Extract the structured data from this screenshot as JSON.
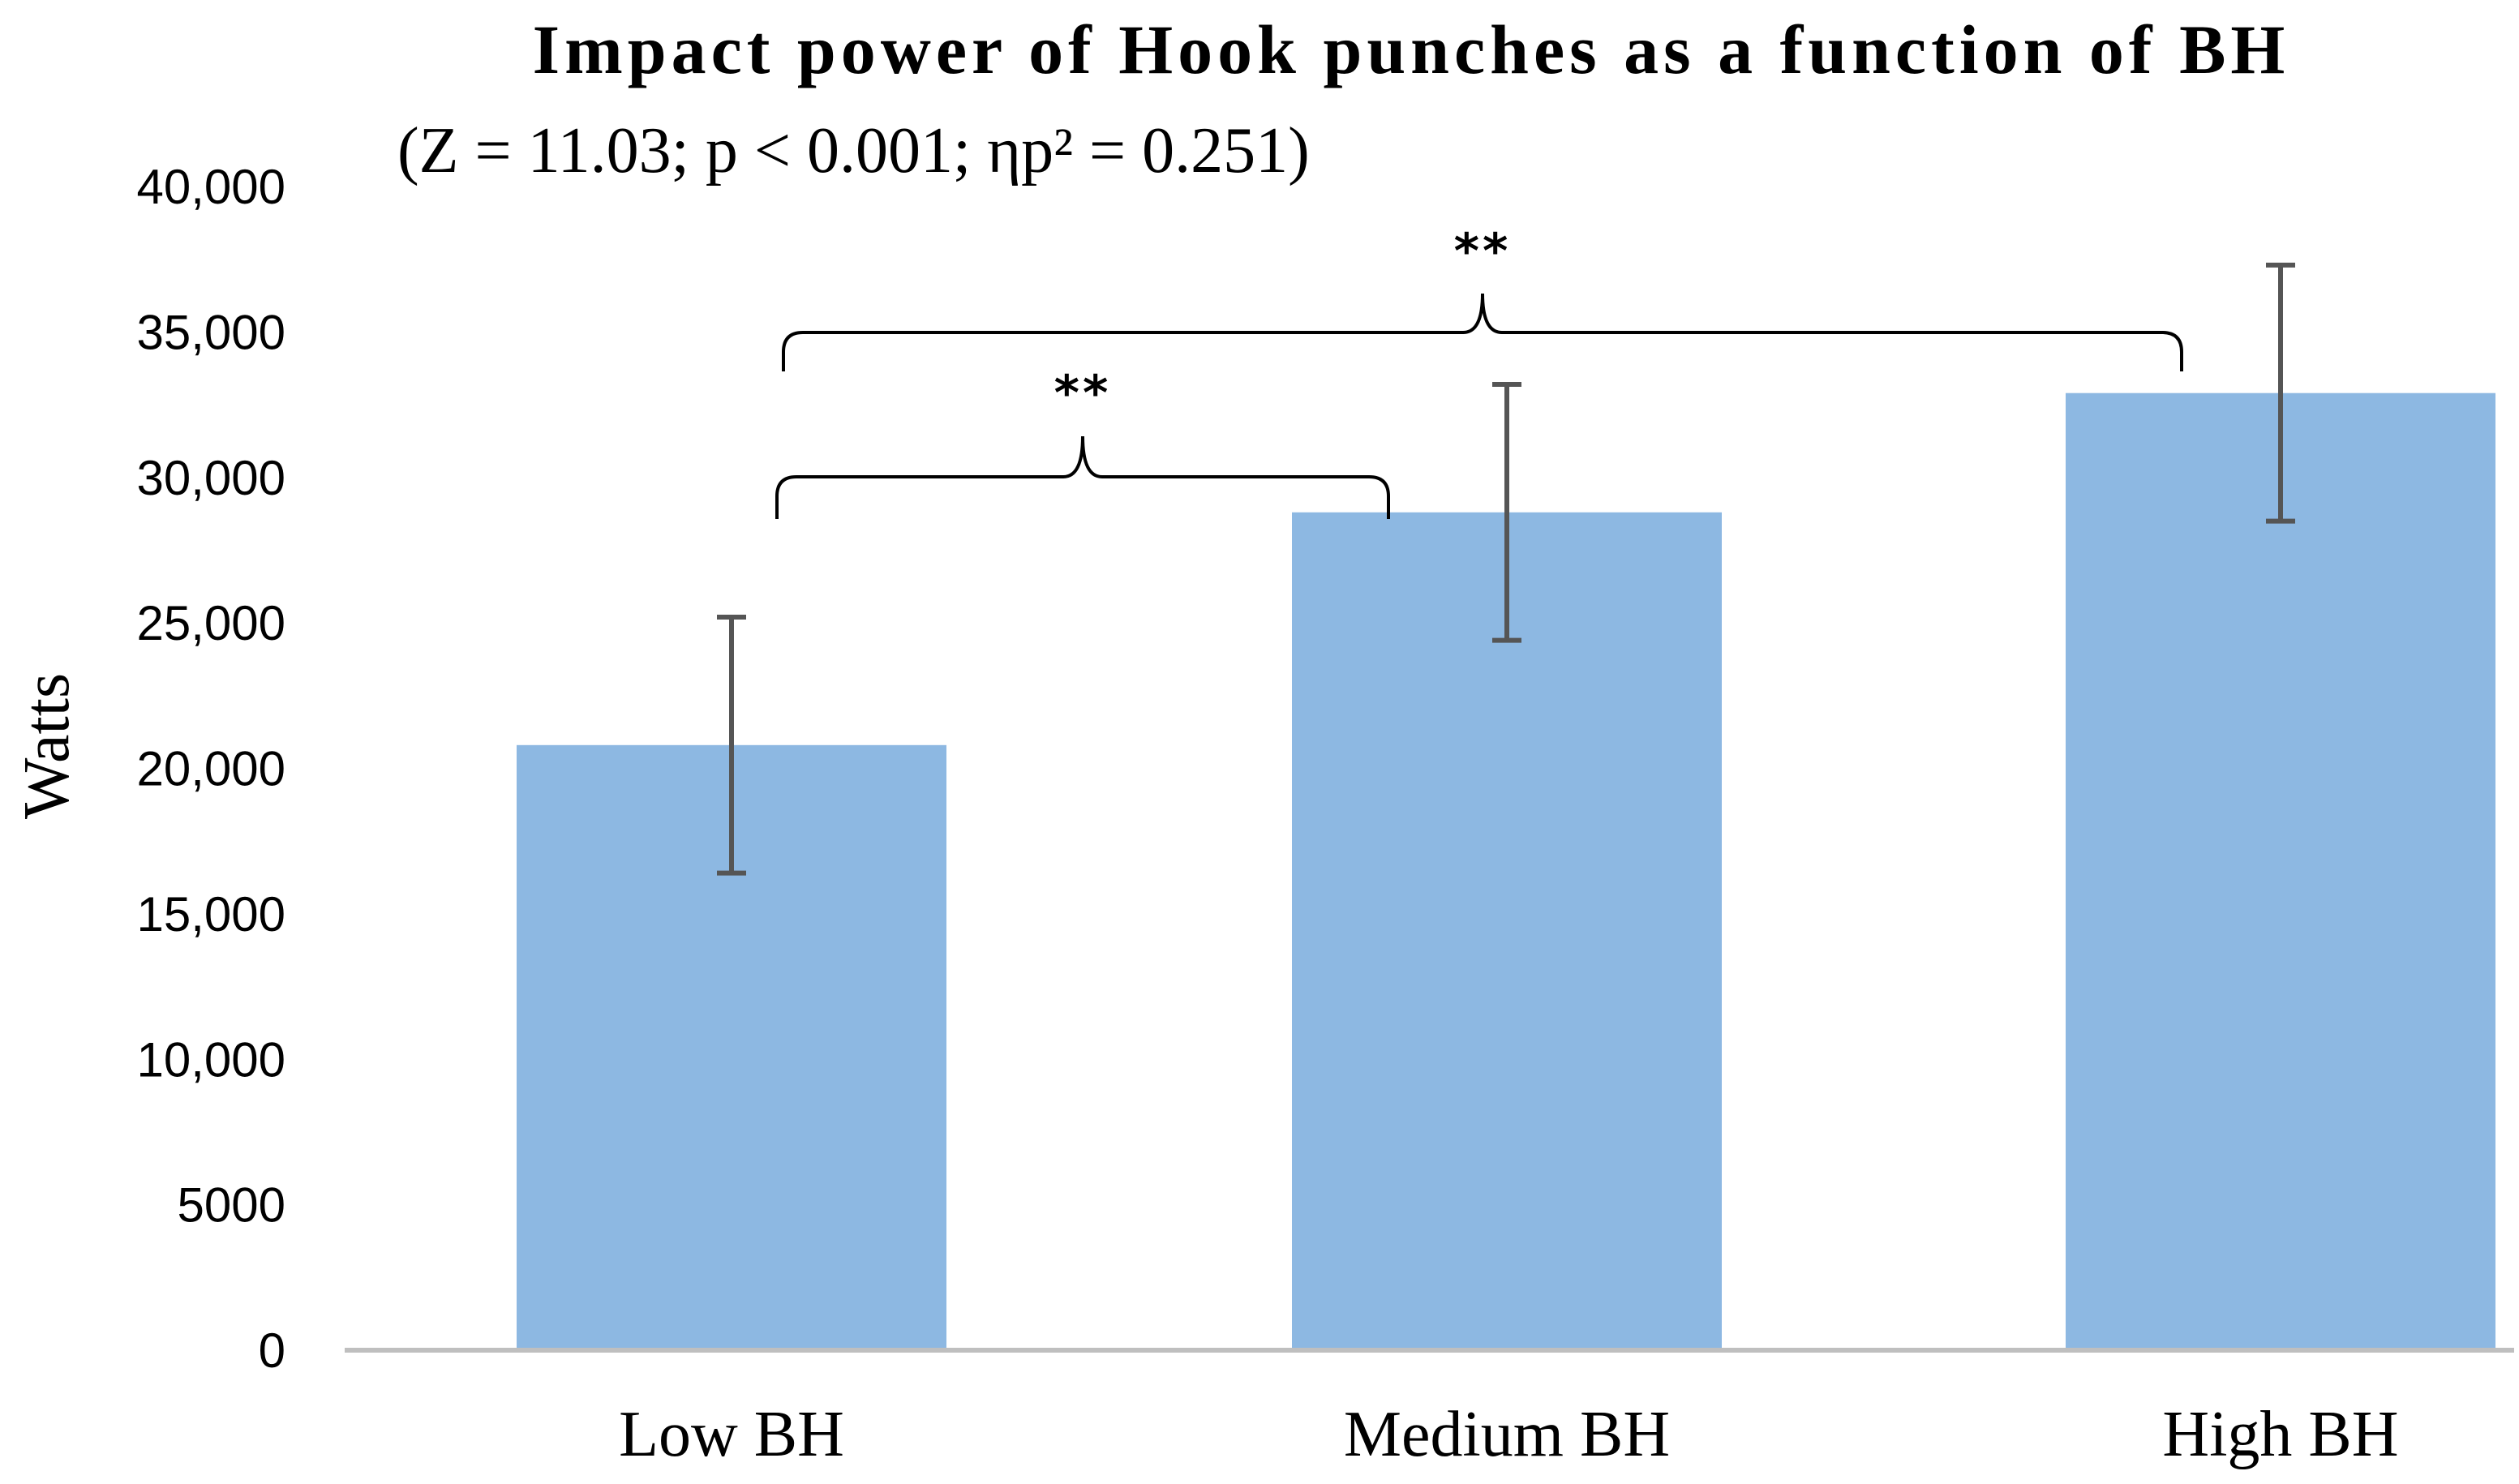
{
  "chart_data": {
    "type": "bar",
    "title": "Impact power of Hook punches as a function of BH",
    "subtitle": "(Z = 11.03; p < 0.001; ηp² = 0.251)",
    "xlabel": "",
    "ylabel": "Watts",
    "ylim": [
      0,
      40000
    ],
    "yticks": [
      "0",
      "5000",
      "10,000",
      "15,000",
      "20,000",
      "25,000",
      "30,000",
      "35,000",
      "40,000"
    ],
    "categories": [
      "Low BH",
      "Medium BH",
      "High BH"
    ],
    "values": [
      20800,
      28800,
      32900
    ],
    "error": [
      4400,
      4400,
      4400
    ],
    "bar_color": "#8db8e2",
    "error_color": "#555555",
    "axis_color": "#bfbfbf",
    "grid": false,
    "significance": [
      {
        "from": "Low BH",
        "to": "Medium BH",
        "label": "**"
      },
      {
        "from": "Low BH",
        "to": "High BH",
        "label": "**"
      }
    ]
  }
}
